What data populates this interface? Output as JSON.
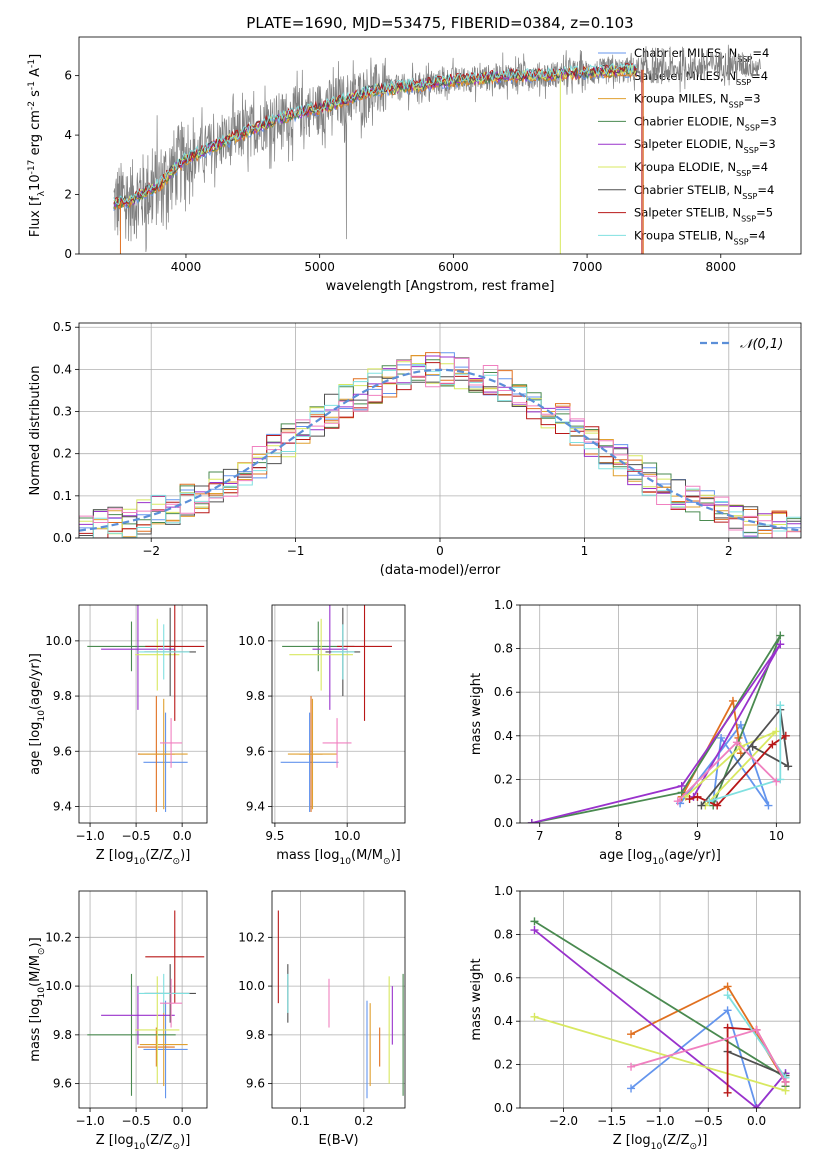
{
  "figure": {
    "title": "PLATE=1690, MJD=53475, FIBERID=0384, z=0.103"
  },
  "legend_labels": [
    "Chabrier MILES, N$_{SSP}$=4",
    "Salpeter MILES, N$_{SSP}$=4",
    "Kroupa MILES, N$_{SSP}$=3",
    "Chabrier ELODIE, N$_{SSP}$=3",
    "Salpeter ELODIE, N$_{SSP}$=3",
    "Kroupa ELODIE, N$_{SSP}$=4",
    "Chabrier STELIB, N$_{SSP}$=4",
    "Salpeter STELIB, N$_{SSP}$=5",
    "Kroupa STELIB, N$_{SSP}$=4"
  ],
  "legend_colors": [
    "#6495ed",
    "#e07020",
    "#e0a030",
    "#4a8a50",
    "#9932cc",
    "#d8e860",
    "#505050",
    "#b81818",
    "#80e0e0"
  ],
  "chart_data": [
    {
      "id": "spectrum",
      "type": "line",
      "xlabel": "wavelength [Angstrom, rest frame]",
      "ylabel": "Flux [f$_\\lambda$10$^{-17}$ erg cm$^{-2}$ s$^{-1}$ A$^{-1}$]",
      "xlim": [
        3200,
        8600
      ],
      "ylim": [
        0,
        7.3
      ],
      "xticks": [
        "4000",
        "5000",
        "6000",
        "7000",
        "8000"
      ],
      "yticks": [
        "0",
        "2",
        "4",
        "6"
      ],
      "data_color": "#808080",
      "continuum": {
        "x": [
          3460,
          3600,
          3700,
          3800,
          3900,
          4000,
          4200,
          4400,
          4600,
          4800,
          5000,
          5200,
          5400,
          5600,
          5800,
          6000,
          6200,
          6400,
          6600,
          6800,
          7000,
          7200,
          7400,
          7600,
          7800,
          8000,
          8200,
          8300
        ],
        "y": [
          1.7,
          1.8,
          2.1,
          2.3,
          2.8,
          3.2,
          3.6,
          4.0,
          4.4,
          4.7,
          4.9,
          5.2,
          5.5,
          5.6,
          5.7,
          5.85,
          5.9,
          6.0,
          6.0,
          6.05,
          6.1,
          6.15,
          6.2,
          6.15,
          6.3,
          6.4,
          6.35,
          6.3
        ]
      },
      "model_end_x": 7380
    },
    {
      "id": "residuals",
      "type": "histogram",
      "xlabel": "(data-model)/error",
      "ylabel": "Normed distribution",
      "xlim": [
        -2.5,
        2.5
      ],
      "ylim": [
        0,
        0.51
      ],
      "xticks": [
        "−2",
        "−1",
        "0",
        "1",
        "2"
      ],
      "yticks": [
        "0.0",
        "0.1",
        "0.2",
        "0.3",
        "0.4",
        "0.5"
      ],
      "legend": "$\\mathcal{N}(0,1)$",
      "reference_curve": "normal(0,1)",
      "bin_width": 0.1
    },
    {
      "id": "age_vs_Z",
      "type": "errorbar",
      "xlabel": "Z [log$_{10}$(Z/Z$_\\odot$)]",
      "ylabel": "age  [log$_{10}$(age/yr)]",
      "xlim": [
        -1.12,
        0.27
      ],
      "ylim": [
        9.34,
        10.13
      ],
      "xticks": [
        "−1.0",
        "−0.5",
        "0.0"
      ],
      "yticks": [
        "9.4",
        "9.6",
        "9.8",
        "10.0"
      ],
      "points": [
        {
          "x": -0.18,
          "xerr": 0.24,
          "y": 9.56,
          "yerr": 0.18,
          "c": 0
        },
        {
          "x": -0.28,
          "xerr": 0.2,
          "y": 9.59,
          "yerr": 0.21,
          "c": 1
        },
        {
          "x": -0.2,
          "xerr": 0.26,
          "y": 9.59,
          "yerr": 0.2,
          "c": 2
        },
        {
          "x": -0.55,
          "xerr": 0.48,
          "y": 9.98,
          "yerr": 0.09,
          "c": 3
        },
        {
          "x": -0.48,
          "xerr": 0.4,
          "y": 9.97,
          "yerr": 0.22,
          "c": 4
        },
        {
          "x": -0.27,
          "xerr": 0.24,
          "y": 9.95,
          "yerr": 0.13,
          "c": 5
        },
        {
          "x": -0.13,
          "xerr": 0.28,
          "y": 9.96,
          "yerr": 0.16,
          "c": 6
        },
        {
          "x": -0.08,
          "xerr": 0.32,
          "y": 9.98,
          "yerr": 0.27,
          "c": 7
        },
        {
          "x": -0.2,
          "xerr": 0.28,
          "y": 9.96,
          "yerr": 0.1,
          "c": 8
        },
        {
          "x": -0.12,
          "xerr": 0.12,
          "y": 9.63,
          "yerr": 0.09,
          "c": 9
        }
      ]
    },
    {
      "id": "age_vs_mass",
      "type": "errorbar",
      "xlabel": "mass [log$_{10}$(M/M$_\\odot$)]",
      "ylabel": "",
      "xlim": [
        9.48,
        10.4
      ],
      "ylim": [
        9.34,
        10.13
      ],
      "xticks": [
        "9.5",
        "10.0"
      ],
      "yticks": [
        "9.4",
        "9.6",
        "9.8",
        "10.0"
      ],
      "points": [
        {
          "x": 9.74,
          "xerr": 0.2,
          "y": 9.56,
          "yerr": 0.18,
          "c": 0
        },
        {
          "x": 9.75,
          "xerr": 0.08,
          "y": 9.59,
          "yerr": 0.21,
          "c": 1
        },
        {
          "x": 9.76,
          "xerr": 0.17,
          "y": 9.59,
          "yerr": 0.2,
          "c": 2
        },
        {
          "x": 9.8,
          "xerr": 0.25,
          "y": 9.98,
          "yerr": 0.09,
          "c": 3
        },
        {
          "x": 9.88,
          "xerr": 0.12,
          "y": 9.97,
          "yerr": 0.22,
          "c": 4
        },
        {
          "x": 9.82,
          "xerr": 0.22,
          "y": 9.95,
          "yerr": 0.13,
          "c": 5
        },
        {
          "x": 9.97,
          "xerr": 0.12,
          "y": 9.96,
          "yerr": 0.16,
          "c": 6
        },
        {
          "x": 10.12,
          "xerr": 0.19,
          "y": 9.98,
          "yerr": 0.27,
          "c": 7
        },
        {
          "x": 9.97,
          "xerr": 0.08,
          "y": 9.96,
          "yerr": 0.1,
          "c": 8
        },
        {
          "x": 9.93,
          "xerr": 0.1,
          "y": 9.63,
          "yerr": 0.09,
          "c": 9
        }
      ]
    },
    {
      "id": "weight_vs_age",
      "type": "line",
      "xlabel": "age  [log$_{10}$(age/yr)]",
      "ylabel": "mass weight",
      "xlim": [
        6.75,
        10.3
      ],
      "ylim": [
        0,
        1
      ],
      "xticks": [
        "7",
        "8",
        "9",
        "10"
      ],
      "yticks": [
        "0.0",
        "0.2",
        "0.4",
        "0.6",
        "0.8",
        "1.0"
      ],
      "series": [
        {
          "c": 0,
          "x": [
            8.78,
            9.55,
            9.9,
            9.3,
            9.2
          ],
          "y": [
            0.09,
            0.45,
            0.08,
            0.39,
            0.1
          ]
        },
        {
          "c": 1,
          "x": [
            8.8,
            9.45,
            9.52,
            9.55
          ],
          "y": [
            0.12,
            0.56,
            0.39,
            0.32
          ]
        },
        {
          "c": 3,
          "x": [
            6.9,
            8.8,
            10.05,
            9.2
          ],
          "y": [
            0.0,
            0.14,
            0.86,
            0.08
          ]
        },
        {
          "c": 4,
          "x": [
            6.9,
            8.8,
            10.05,
            8.95
          ],
          "y": [
            0.0,
            0.17,
            0.82,
            0.12
          ]
        },
        {
          "c": 5,
          "x": [
            8.85,
            9.55,
            10.0,
            9.1
          ],
          "y": [
            0.12,
            0.35,
            0.42,
            0.08
          ]
        },
        {
          "c": 6,
          "x": [
            9.05,
            10.05,
            10.15,
            9.7
          ],
          "y": [
            0.08,
            0.52,
            0.26,
            0.35
          ]
        },
        {
          "c": 7,
          "x": [
            8.9,
            9.0,
            9.25,
            9.95,
            10.12
          ],
          "y": [
            0.11,
            0.12,
            0.08,
            0.36,
            0.4
          ]
        },
        {
          "c": 8,
          "x": [
            9.15,
            10.05,
            10.05
          ],
          "y": [
            0.1,
            0.2,
            0.54
          ]
        },
        {
          "c": 9,
          "x": [
            8.75,
            9.5,
            10.0
          ],
          "y": [
            0.1,
            0.37,
            0.19
          ]
        }
      ]
    },
    {
      "id": "mass_vs_Z",
      "type": "errorbar",
      "xlabel": "Z [log$_{10}$(Z/Z$_\\odot$)]",
      "ylabel": "mass [log$_{10}$(M/M$_\\odot$)]",
      "xlim": [
        -1.12,
        0.27
      ],
      "ylim": [
        9.5,
        10.39
      ],
      "xticks": [
        "−1.0",
        "−0.5",
        "0.0"
      ],
      "yticks": [
        "9.6",
        "9.8",
        "10.0",
        "10.2"
      ],
      "points": [
        {
          "x": -0.18,
          "xerr": 0.24,
          "y": 9.74,
          "yerr": 0.2,
          "c": 0
        },
        {
          "x": -0.28,
          "xerr": 0.2,
          "y": 9.75,
          "yerr": 0.08,
          "c": 1
        },
        {
          "x": -0.2,
          "xerr": 0.26,
          "y": 9.76,
          "yerr": 0.17,
          "c": 2
        },
        {
          "x": -0.55,
          "xerr": 0.48,
          "y": 9.8,
          "yerr": 0.25,
          "c": 3
        },
        {
          "x": -0.48,
          "xerr": 0.4,
          "y": 9.88,
          "yerr": 0.12,
          "c": 4
        },
        {
          "x": -0.27,
          "xerr": 0.24,
          "y": 9.82,
          "yerr": 0.22,
          "c": 5
        },
        {
          "x": -0.13,
          "xerr": 0.28,
          "y": 9.97,
          "yerr": 0.12,
          "c": 6
        },
        {
          "x": -0.08,
          "xerr": 0.32,
          "y": 10.12,
          "yerr": 0.19,
          "c": 7
        },
        {
          "x": -0.2,
          "xerr": 0.28,
          "y": 9.97,
          "yerr": 0.08,
          "c": 8
        },
        {
          "x": -0.12,
          "xerr": 0.12,
          "y": 9.93,
          "yerr": 0.1,
          "c": 9
        }
      ]
    },
    {
      "id": "mass_vs_ebv",
      "type": "errorbar",
      "xlabel": "E(B-V)",
      "ylabel": "",
      "xlim": [
        0.055,
        0.265
      ],
      "ylim": [
        9.5,
        10.39
      ],
      "xticks": [
        "0.1",
        "0.2"
      ],
      "yticks": [
        "9.6",
        "9.8",
        "10.0",
        "10.2"
      ],
      "points": [
        {
          "x": 0.205,
          "xerr": 0,
          "y": 9.74,
          "yerr": 0.2,
          "c": 0
        },
        {
          "x": 0.225,
          "xerr": 0,
          "y": 9.75,
          "yerr": 0.08,
          "c": 1
        },
        {
          "x": 0.21,
          "xerr": 0,
          "y": 9.76,
          "yerr": 0.17,
          "c": 2
        },
        {
          "x": 0.262,
          "xerr": 0,
          "y": 9.8,
          "yerr": 0.25,
          "c": 3
        },
        {
          "x": 0.245,
          "xerr": 0,
          "y": 9.88,
          "yerr": 0.12,
          "c": 4
        },
        {
          "x": 0.24,
          "xerr": 0,
          "y": 9.82,
          "yerr": 0.22,
          "c": 5
        },
        {
          "x": 0.08,
          "xerr": 0,
          "y": 9.97,
          "yerr": 0.12,
          "c": 6
        },
        {
          "x": 0.065,
          "xerr": 0,
          "y": 10.12,
          "yerr": 0.19,
          "c": 7
        },
        {
          "x": 0.08,
          "xerr": 0,
          "y": 9.97,
          "yerr": 0.08,
          "c": 8
        },
        {
          "x": 0.145,
          "xerr": 0,
          "y": 9.93,
          "yerr": 0.1,
          "c": 9
        }
      ]
    },
    {
      "id": "weight_vs_Z",
      "type": "line",
      "xlabel": "Z [log$_{10}$(Z/Z$_\\odot$)]",
      "ylabel": "mass weight",
      "xlim": [
        -2.45,
        0.45
      ],
      "ylim": [
        0,
        1
      ],
      "xticks": [
        "−2.0",
        "−1.5",
        "−1.0",
        "−0.5",
        "0.0"
      ],
      "yticks": [
        "0.0",
        "0.2",
        "0.4",
        "0.6",
        "0.8",
        "1.0"
      ],
      "series": [
        {
          "c": 0,
          "x": [
            -1.3,
            -0.3,
            0.0,
            0.3
          ],
          "y": [
            0.09,
            0.45,
            0.0,
            0.16
          ]
        },
        {
          "c": 1,
          "x": [
            -1.3,
            -0.3,
            0.3,
            0.3
          ],
          "y": [
            0.34,
            0.56,
            0.12,
            0.1
          ]
        },
        {
          "c": 3,
          "x": [
            -2.3,
            0.3,
            0.3
          ],
          "y": [
            0.86,
            0.14,
            0.1
          ]
        },
        {
          "c": 4,
          "x": [
            -2.3,
            0.0,
            0.3
          ],
          "y": [
            0.82,
            0.0,
            0.16
          ]
        },
        {
          "c": 5,
          "x": [
            -2.3,
            0.3
          ],
          "y": [
            0.42,
            0.08
          ]
        },
        {
          "c": 6,
          "x": [
            -0.3,
            0.3
          ],
          "y": [
            0.26,
            0.15
          ]
        },
        {
          "c": 7,
          "x": [
            -0.3,
            -0.3,
            0.0,
            0.3
          ],
          "y": [
            0.07,
            0.37,
            0.36,
            0.12
          ]
        },
        {
          "c": 8,
          "x": [
            -0.3,
            0.3
          ],
          "y": [
            0.52,
            0.14
          ]
        },
        {
          "c": 9,
          "x": [
            -1.3,
            0.0,
            0.3
          ],
          "y": [
            0.19,
            0.36,
            0.12
          ]
        }
      ]
    }
  ]
}
